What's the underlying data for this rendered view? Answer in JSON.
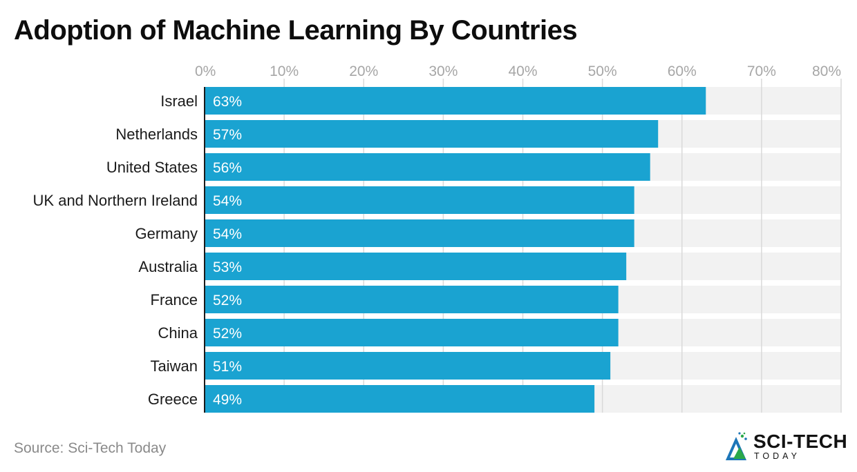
{
  "title": "Adoption of Machine Learning By Countries",
  "source": "Source: Sci-Tech Today",
  "logo": {
    "main": "SCI-TECH",
    "sub": "TODAY",
    "icon": "sci-tech-logo-icon"
  },
  "colors": {
    "bar": "#1aa3d1",
    "track": "#f2f2f2",
    "grid": "#d9d9d9",
    "label": "#ffffff",
    "axis": "#1a1a1a",
    "tick": "#a6a6a6"
  },
  "chart_data": {
    "type": "bar",
    "orientation": "horizontal",
    "categories": [
      "Israel",
      "Netherlands",
      "United States",
      "UK and Northern Ireland",
      "Germany",
      "Australia",
      "France",
      "China",
      "Taiwan",
      "Greece"
    ],
    "values": [
      63,
      57,
      56,
      54,
      54,
      53,
      52,
      52,
      51,
      49
    ],
    "data_labels": [
      "63%",
      "57%",
      "56%",
      "54%",
      "54%",
      "53%",
      "52%",
      "52%",
      "51%",
      "49%"
    ],
    "xticks": [
      "0%",
      "10%",
      "20%",
      "30%",
      "40%",
      "50%",
      "60%",
      "70%",
      "80%"
    ],
    "xlim": [
      0,
      80
    ],
    "grid": true,
    "axis_position": "top"
  }
}
